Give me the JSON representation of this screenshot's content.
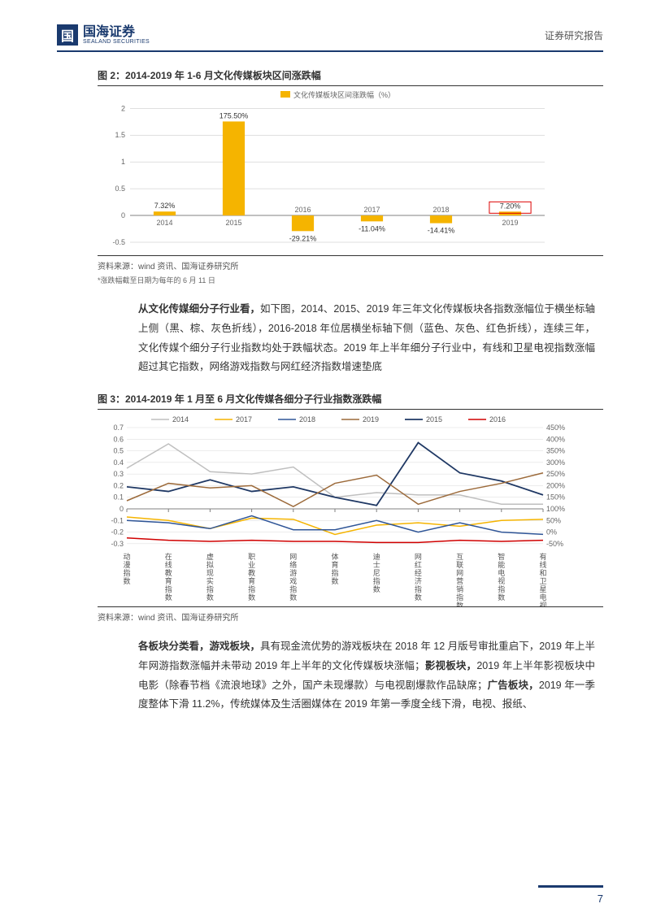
{
  "header": {
    "logo_glyph": "国",
    "logo_cn": "国海证券",
    "logo_en": "SEALAND SECURITIES",
    "right": "证券研究报告"
  },
  "fig2": {
    "title": "图 2：2014-2019 年 1-6 月文化传媒板块区间涨跌幅",
    "legend": "文化传媒板块区间涨跌幅（%）",
    "type": "bar",
    "categories": [
      "2014",
      "2015",
      "2016",
      "2017",
      "2018",
      "2019"
    ],
    "values": [
      0.0732,
      1.755,
      -0.2921,
      -0.1104,
      -0.1441,
      0.072
    ],
    "bar_labels": [
      "7.32%",
      "175.50%",
      "-29.21%",
      "-11.04%",
      "-14.41%",
      "7.20%"
    ],
    "bar_color": "#f5b400",
    "highlight_index": 5,
    "highlight_color": "#d00000",
    "yticks": [
      -0.5,
      0,
      0.5,
      1,
      1.5,
      2
    ],
    "ylim": [
      -0.5,
      2.05
    ],
    "grid_color": "#bfbfbf",
    "axis_color": "#808080",
    "background_color": "#ffffff",
    "label_fontsize": 9,
    "bar_width": 0.32,
    "source": "资料来源：wind 资讯、国海证券研究所",
    "note": "*涨跌幅截至日期为每年的 6 月 11 日"
  },
  "para1": {
    "strong": "从文化传媒细分子行业看，",
    "rest": "如下图，2014、2015、2019 年三年文化传媒板块各指数涨幅位于横坐标轴上侧（黑、棕、灰色折线），2016-2018 年位居横坐标轴下侧（蓝色、灰色、红色折线），连续三年，文化传媒个细分子行业指数均处于跌幅状态。2019 年上半年细分子行业中，有线和卫星电视指数涨幅超过其它指数，网络游戏指数与网红经济指数增速垫底"
  },
  "fig3": {
    "title": "图 3：2014-2019 年 1 月至 6 月文化传媒各细分子行业指数涨跌幅",
    "type": "line",
    "categories": [
      "动漫指数",
      "在线教育指数",
      "虚拟现实指数",
      "职业教育指数",
      "网络游戏指数",
      "体育指数",
      "迪士尼指数",
      "网红经济指数",
      "互联网营销指数",
      "智能电视指数",
      "有线和卫星电视指数"
    ],
    "series_order": [
      "2014",
      "2017",
      "2018",
      "2019",
      "2015",
      "2016"
    ],
    "series": {
      "2014": {
        "color": "#bfbfbf",
        "width": 1.5,
        "y": [
          0.35,
          0.56,
          0.32,
          0.3,
          0.36,
          0.1,
          0.14,
          0.12,
          0.12,
          0.04,
          0.04
        ]
      },
      "2017": {
        "color": "#f5b400",
        "width": 1.5,
        "y": [
          -0.07,
          -0.1,
          -0.17,
          -0.08,
          -0.09,
          -0.22,
          -0.14,
          -0.12,
          -0.15,
          -0.1,
          -0.09
        ]
      },
      "2018": {
        "color": "#2f5597",
        "width": 1.5,
        "y": [
          -0.1,
          -0.12,
          -0.17,
          -0.06,
          -0.18,
          -0.18,
          -0.1,
          -0.2,
          -0.12,
          -0.2,
          -0.22
        ]
      },
      "2019": {
        "color": "#9c6a3a",
        "width": 1.5,
        "y": [
          0.07,
          0.22,
          0.18,
          0.2,
          0.02,
          0.22,
          0.29,
          0.04,
          0.15,
          0.22,
          0.31
        ]
      },
      "2015": {
        "color": "#1f3864",
        "width": 1.8,
        "y": [
          0.19,
          0.15,
          0.25,
          0.15,
          0.19,
          0.1,
          0.03,
          0.57,
          0.31,
          0.24,
          0.12
        ]
      },
      "2016": {
        "color": "#d00000",
        "width": 1.5,
        "y": [
          -0.25,
          -0.27,
          -0.28,
          -0.27,
          -0.28,
          -0.28,
          -0.29,
          -0.29,
          -0.27,
          -0.28,
          -0.27
        ]
      }
    },
    "y_left_ticks": [
      -0.3,
      -0.2,
      -0.1,
      0,
      0.1,
      0.2,
      0.3,
      0.4,
      0.5,
      0.6,
      0.7
    ],
    "y_left_lim": [
      -0.35,
      0.7
    ],
    "y_right_ticks": [
      "-50%",
      "0%",
      "50%",
      "100%",
      "150%",
      "200%",
      "250%",
      "300%",
      "350%",
      "400%",
      "450%"
    ],
    "grid_color": "#d9d9d9",
    "axis_color": "#808080",
    "label_fontsize": 9,
    "source": "资料来源：wind 资讯、国海证券研究所"
  },
  "para2": {
    "parts": [
      {
        "bold": true,
        "text": "各板块分类看，游戏板块，"
      },
      {
        "bold": false,
        "text": "具有现金流优势的游戏板块在 2018 年 12 月版号审批重启下，2019 年上半年网游指数涨幅并未带动 2019 年上半年的文化传媒板块涨幅；"
      },
      {
        "bold": true,
        "text": "影视板块，"
      },
      {
        "bold": false,
        "text": "2019 年上半年影视板块中电影（除春节档《流浪地球》之外，国产未现爆款）与电视剧爆款作品缺席；"
      },
      {
        "bold": true,
        "text": "广告板块，"
      },
      {
        "bold": false,
        "text": "2019 年一季度整体下滑 11.2%，传统媒体及生活圈媒体在 2019 年第一季度全线下滑，电视、报纸、"
      }
    ]
  },
  "footer": {
    "page": "7"
  }
}
